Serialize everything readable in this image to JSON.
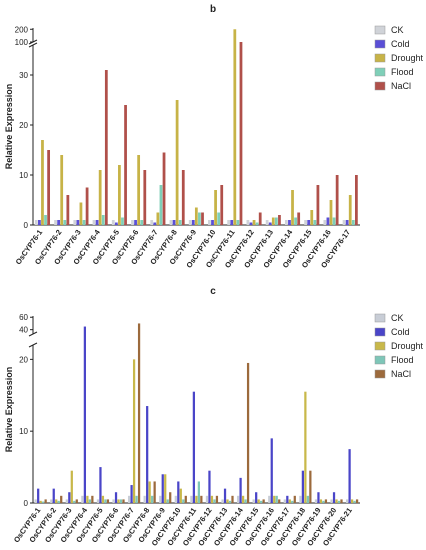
{
  "chart_data": [
    {
      "type": "bar",
      "title": "b",
      "y_label": "Relative Expression",
      "categories": [
        "OsCYP76-1",
        "OsCYP76-2",
        "OsCYP76-3",
        "OsCYP76-4",
        "OsCYP76-5",
        "OsCYP76-6",
        "OsCYP76-7",
        "OsCYP76-8",
        "OsCYP76-9",
        "OsCYP76-10",
        "OsCYP76-11",
        "OsCYP76-12",
        "OsCYP76-13",
        "OsCYP76-14",
        "OsCYP76-15",
        "OsCYP76-16",
        "OsCYP76-17"
      ],
      "series": [
        {
          "name": "CK",
          "color": "#d0d3d8",
          "values": [
            1,
            1,
            1,
            1,
            1,
            1,
            1,
            1,
            1,
            1,
            1,
            1,
            1,
            1,
            1,
            1,
            1
          ]
        },
        {
          "name": "Cold",
          "color": "#5a4fd6",
          "values": [
            1,
            1,
            1,
            1,
            0.5,
            1,
            0.5,
            1,
            1,
            1,
            1,
            0.5,
            0.5,
            1,
            1,
            1.5,
            1
          ]
        },
        {
          "name": "Drought",
          "color": "#c7b347",
          "values": [
            17,
            14,
            4.5,
            11,
            12,
            14,
            2.5,
            25,
            3.5,
            7,
            200,
            1,
            1.5,
            7,
            3,
            5,
            6
          ]
        },
        {
          "name": "Flood",
          "color": "#7fcfb8",
          "values": [
            2,
            1,
            1,
            2,
            1.5,
            1,
            8,
            1,
            2.5,
            2.5,
            1,
            0.5,
            1.5,
            1.5,
            1,
            1.5,
            1
          ]
        },
        {
          "name": "NaCl",
          "color": "#b0504a",
          "values": [
            15,
            6,
            7.5,
            31,
            24,
            11,
            14.5,
            11,
            2.5,
            8,
            100,
            2.5,
            2,
            2.5,
            8,
            10,
            10
          ]
        }
      ],
      "ylim": [
        0,
        210
      ],
      "ybreak": [
        36,
        100
      ],
      "yticks": [
        0,
        10,
        20,
        30,
        100,
        200
      ],
      "legend": "upper right"
    },
    {
      "type": "bar",
      "title": "c",
      "y_label": "Relative Expression",
      "categories": [
        "OsCYP76-1",
        "OsCYP76-2",
        "OsCYP76-3",
        "OsCYP76-4",
        "OsCYP76-5",
        "OsCYP76-6",
        "OsCYP76-7",
        "OsCYP76-8",
        "OsCYP76-9",
        "OsCYP76-10",
        "OsCYP76-11",
        "OsCYP76-12",
        "OsCYP76-13",
        "OsCYP76-14",
        "OsCYP76-15",
        "OsCYP76-16",
        "OsCYP76-17",
        "OsCYP76-18",
        "OsCYP76-19",
        "OsCYP76-20",
        "OsCYP76-21"
      ],
      "series": [
        {
          "name": "CK",
          "color": "#c8cdd6",
          "values": [
            0.5,
            0.5,
            0.5,
            1,
            0.5,
            0.5,
            1,
            1,
            1,
            1,
            1,
            1,
            0.5,
            1,
            0.5,
            1,
            0.5,
            1,
            0.5,
            0.5,
            0.5
          ]
        },
        {
          "name": "Cold",
          "color": "#4a45c8",
          "values": [
            2,
            2,
            1.5,
            45,
            5,
            1.5,
            2.5,
            13.5,
            4,
            3,
            15.5,
            4.5,
            2,
            3.5,
            1.5,
            9,
            1,
            4.5,
            1.5,
            1.5,
            7.5
          ]
        },
        {
          "name": "Drought",
          "color": "#c8b84a",
          "values": [
            0.3,
            0.5,
            4.5,
            1,
            1,
            0.5,
            20,
            3,
            4,
            2,
            1,
            1,
            0.5,
            1,
            0.5,
            1,
            0.5,
            15.5,
            0.5,
            0.5,
            0.5
          ]
        },
        {
          "name": "Flood",
          "color": "#7ec6b8",
          "values": [
            0.2,
            0.3,
            0.3,
            0.5,
            0.5,
            0.5,
            1,
            1,
            0.5,
            0.5,
            3,
            0.5,
            0.3,
            0.5,
            0.3,
            1,
            0.3,
            1,
            0.3,
            0.3,
            0.3
          ]
        },
        {
          "name": "NaCl",
          "color": "#9c6a3c",
          "values": [
            0.5,
            1,
            0.5,
            1,
            0.5,
            0.5,
            50,
            3,
            1.5,
            1,
            1,
            1,
            1,
            19.5,
            0.5,
            0.5,
            1,
            4.5,
            0.5,
            0.5,
            0.5
          ]
        }
      ],
      "ylim": [
        0,
        62
      ],
      "ybreak": [
        22,
        33
      ],
      "yticks": [
        0,
        10,
        20,
        40,
        60
      ],
      "legend": "upper right"
    }
  ]
}
